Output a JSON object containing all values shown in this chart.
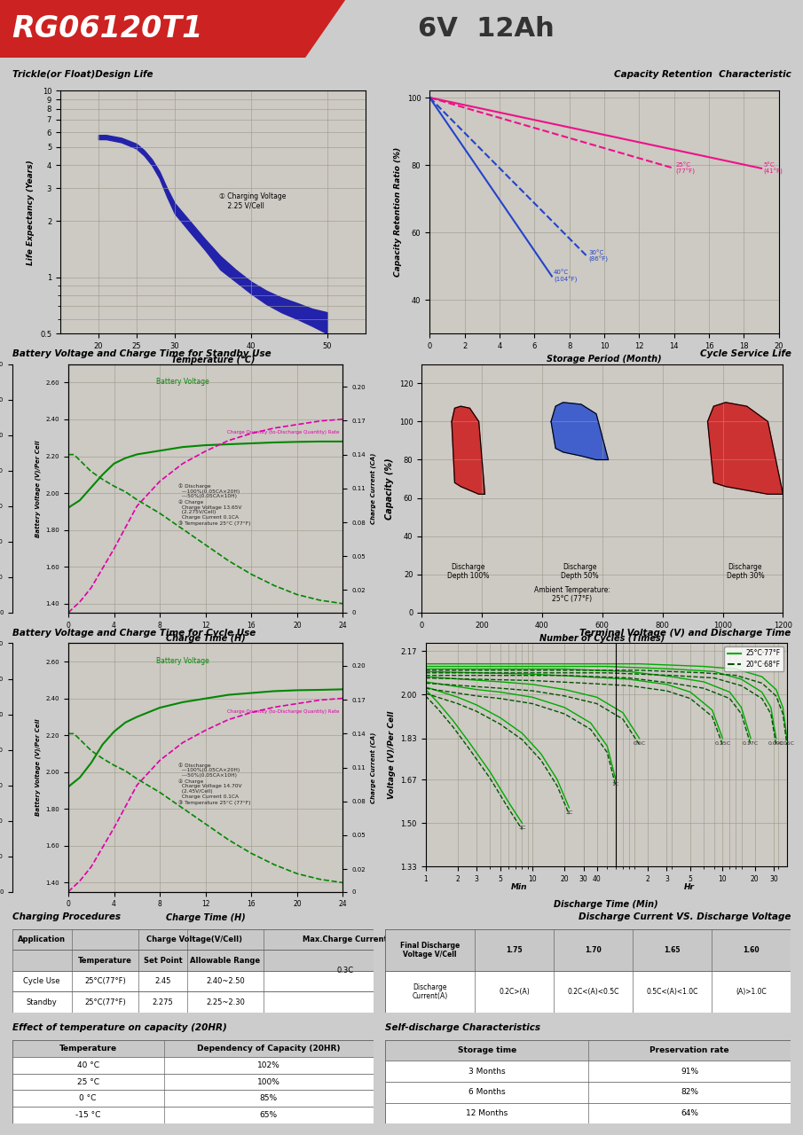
{
  "title_model": "RG06120T1",
  "title_spec": "6V  12Ah",
  "header_bg": "#cc2222",
  "page_bg": "#cccccc",
  "chart_bg": "#cdc9c3",
  "section_titles": {
    "trickle": "Trickle(or Float)Design Life",
    "capacity_retention": "Capacity Retention  Characteristic",
    "standby": "Battery Voltage and Charge Time for Standby Use",
    "cycle_service": "Cycle Service Life",
    "cycle_charge": "Battery Voltage and Charge Time for Cycle Use",
    "terminal_voltage": "Terminal Voltage (V) and Discharge Time",
    "charging_proc": "Charging Procedures",
    "discharge_vs": "Discharge Current VS. Discharge Voltage",
    "temp_effect": "Effect of temperature on capacity (20HR)",
    "self_discharge": "Self-discharge Characteristics"
  }
}
